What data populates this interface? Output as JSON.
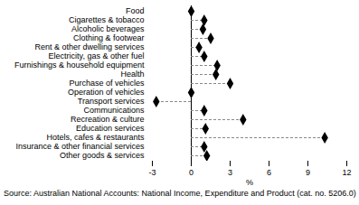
{
  "chart_data": {
    "type": "dot",
    "orientation": "horizontal",
    "caption": "Source: Australian National Accounts: National Income, Expenditure and Product (cat. no. 5206.0)",
    "x_label": "%",
    "categories": [
      "Food",
      "Cigarettes & tobacco",
      "Alcoholic beverages",
      "Clothing & footwear",
      "Rent & other dwelling services",
      "Electricity, gas & other fuel",
      "Furnishings & household equipment",
      "Health",
      "Purchase of vehicles",
      "Operation of vehicles",
      "Transport services",
      "Communications",
      "Recreation & culture",
      "Education services",
      "Hotels, cafes & restaurants",
      "Insurance & other financial services",
      "Other goods & services"
    ],
    "values": [
      0,
      1.0,
      0.9,
      1.5,
      0.6,
      1.0,
      2.0,
      1.9,
      3.0,
      0,
      -2.7,
      1.0,
      4.0,
      1.1,
      10.3,
      1.0,
      1.2
    ],
    "xlim": [
      -3,
      12
    ],
    "xticks": [
      -3,
      0,
      3,
      6,
      9,
      12
    ],
    "color": "#000000",
    "marker": "diamond",
    "line_style": "dashed",
    "grid": false
  }
}
